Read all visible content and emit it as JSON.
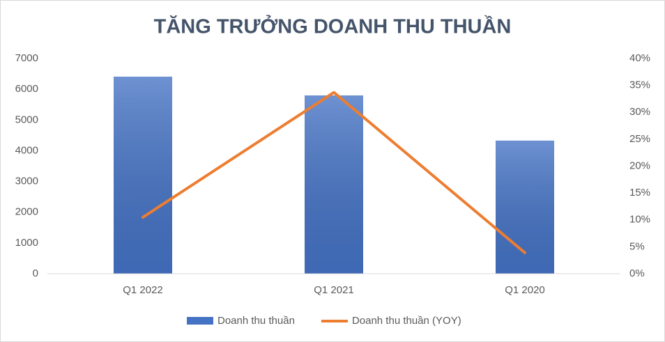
{
  "chart_data": {
    "type": "bar-line",
    "title": "TĂNG TRƯỞNG DOANH THU THUẦN",
    "categories": [
      "Q1 2022",
      "Q1 2021",
      "Q1 2020"
    ],
    "series": [
      {
        "name": "Doanh thu thuần",
        "type": "bar",
        "color": "#4472c4",
        "values": [
          6410,
          5800,
          4330
        ]
      },
      {
        "name": "Doanh thu thuần (YOY)",
        "type": "line",
        "color": "#ed7d31",
        "axis": "y2",
        "values": [
          10.5,
          33.7,
          3.9
        ]
      }
    ],
    "ylim": [
      0,
      7000
    ],
    "yticks": [
      0,
      1000,
      2000,
      3000,
      4000,
      5000,
      6000,
      7000
    ],
    "y2lim": [
      0,
      40
    ],
    "y2ticks": [
      {
        "value": 0,
        "label": "0%"
      },
      {
        "value": 5,
        "label": "5%"
      },
      {
        "value": 10,
        "label": "10%"
      },
      {
        "value": 15,
        "label": "15%"
      },
      {
        "value": 20,
        "label": "20%"
      },
      {
        "value": 25,
        "label": "25%"
      },
      {
        "value": 30,
        "label": "30%"
      },
      {
        "value": 35,
        "label": "35%"
      },
      {
        "value": 40,
        "label": "40%"
      }
    ],
    "grid": false,
    "legend": "bottom"
  }
}
